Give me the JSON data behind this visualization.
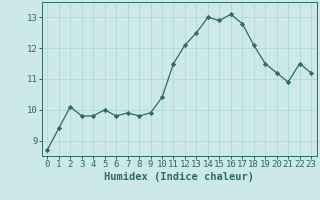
{
  "x": [
    0,
    1,
    2,
    3,
    4,
    5,
    6,
    7,
    8,
    9,
    10,
    11,
    12,
    13,
    14,
    15,
    16,
    17,
    18,
    19,
    20,
    21,
    22,
    23
  ],
  "y": [
    8.7,
    9.4,
    10.1,
    9.8,
    9.8,
    10.0,
    9.8,
    9.9,
    9.8,
    9.9,
    10.4,
    11.5,
    12.1,
    12.5,
    13.0,
    12.9,
    13.1,
    12.8,
    12.1,
    11.5,
    11.2,
    10.9,
    11.5,
    11.2
  ],
  "xlabel": "Humidex (Indice chaleur)",
  "xlim": [
    -0.5,
    23.5
  ],
  "ylim": [
    8.5,
    13.5
  ],
  "yticks": [
    9,
    10,
    11,
    12,
    13
  ],
  "xticks": [
    0,
    1,
    2,
    3,
    4,
    5,
    6,
    7,
    8,
    9,
    10,
    11,
    12,
    13,
    14,
    15,
    16,
    17,
    18,
    19,
    20,
    21,
    22,
    23
  ],
  "line_color": "#2e6b60",
  "marker": "D",
  "marker_size": 2.2,
  "bg_color": "#cce8e8",
  "grid_color": "#b0d8d8",
  "axis_color": "#2e6b60",
  "tick_label_color": "#2e6b60",
  "xlabel_color": "#2e6b60",
  "xlabel_fontsize": 7.5,
  "tick_fontsize": 6.5
}
